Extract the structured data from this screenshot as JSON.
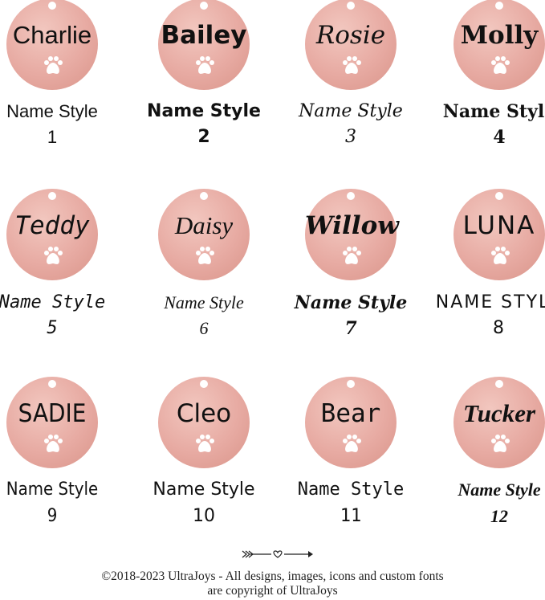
{
  "colors": {
    "tag": "#e7aaa2",
    "paw": "#ffffff",
    "text": "#111111"
  },
  "styles": [
    {
      "name": "Charlie",
      "label": "Name Style",
      "number": "1"
    },
    {
      "name": "Bailey",
      "label": "Name Style",
      "number": "2"
    },
    {
      "name": "Rosie",
      "label": "Name Style",
      "number": "3"
    },
    {
      "name": "Molly",
      "label": "Name Style",
      "number": "4"
    },
    {
      "name": "Teddy",
      "label": "Name Style",
      "number": "5"
    },
    {
      "name": "Daisy",
      "label": "Name Style",
      "number": "6"
    },
    {
      "name": "Willow",
      "label": "Name Style",
      "number": "7"
    },
    {
      "name": "LUNA",
      "label": "NAME STYLE",
      "number": "8"
    },
    {
      "name": "SADIE",
      "label": "Name Style",
      "number": "9"
    },
    {
      "name": "Cleo",
      "label": "Name Style",
      "number": "10"
    },
    {
      "name": "Bear",
      "label": "Name Style",
      "number": "11"
    },
    {
      "name": "Tucker",
      "label": "Name Style",
      "number": "12"
    }
  ],
  "footer": {
    "line1": "©2018-2023 UltraJoys - All designs, images, icons and custom fonts",
    "line2": "are copyright of UltraJoys",
    "divider_icon": "arrow-heart-icon"
  }
}
